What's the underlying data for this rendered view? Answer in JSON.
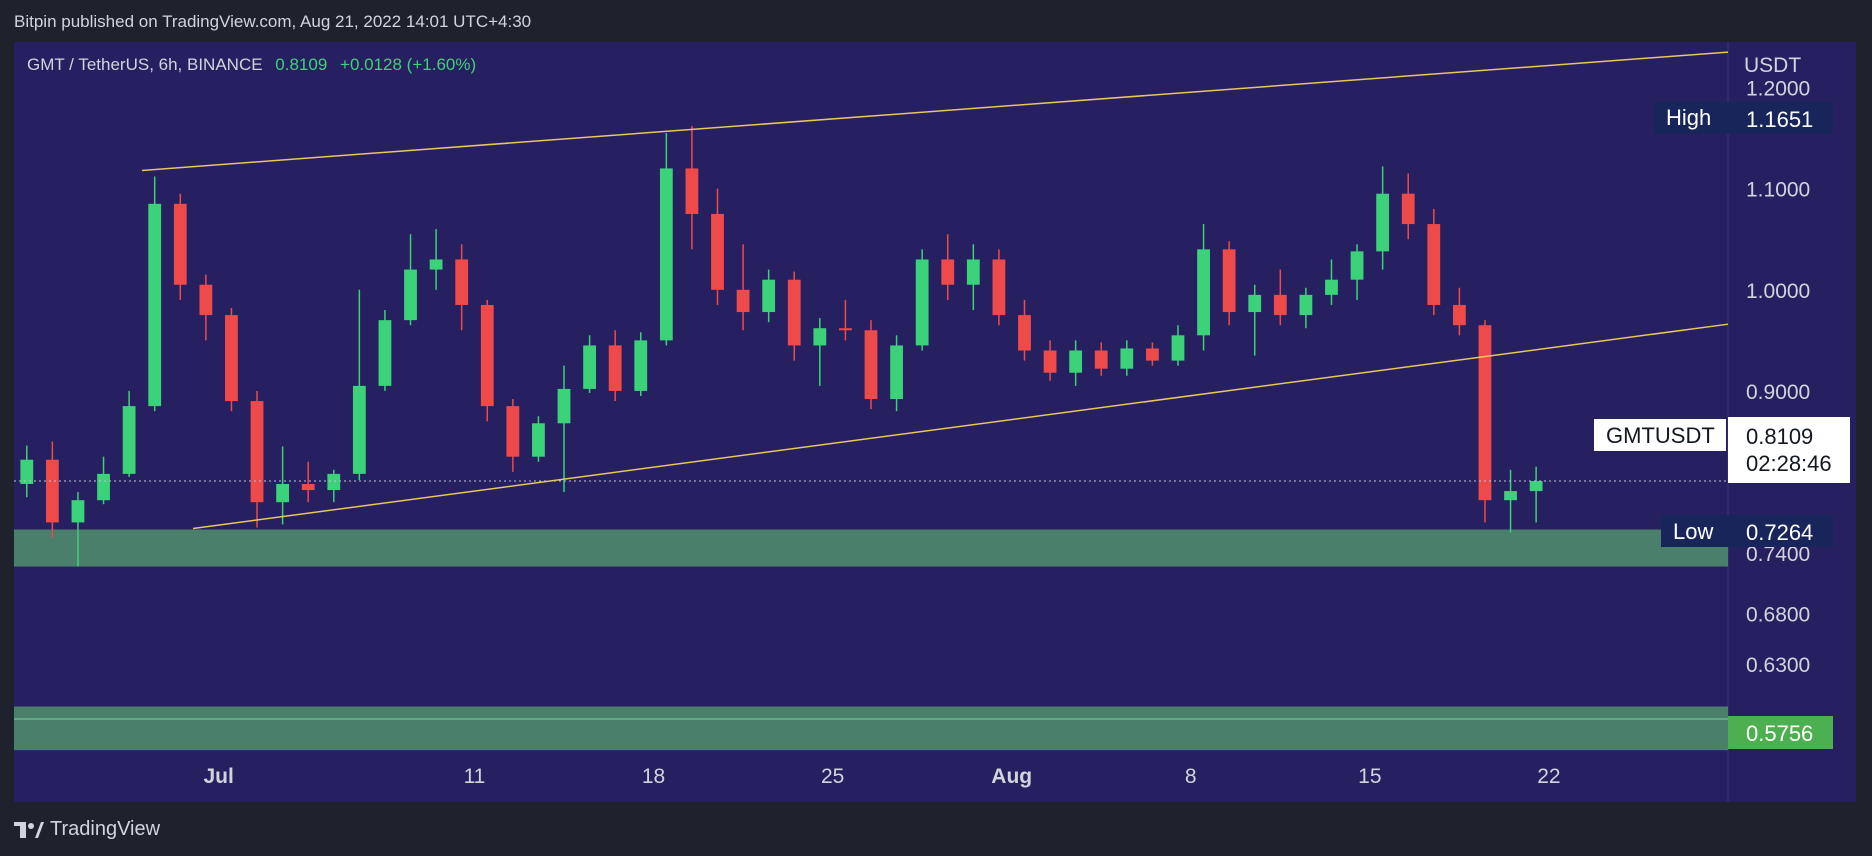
{
  "header": {
    "publisher_text": "Bitpin published on TradingView.com, Aug 21, 2022 14:01 UTC+4:30"
  },
  "footer": {
    "brand": "TradingView",
    "logo_icon": "tradingview-logo-icon"
  },
  "colors": {
    "page_bg": "#1e222d",
    "chart_bg": "#262060",
    "up": "#3cd27a",
    "down": "#ef4a4a",
    "channel": "#e8c75a",
    "zone": "#4f8a6d",
    "label_bg": "#17255a",
    "support_label": "#4caf50"
  },
  "symbol_bar": {
    "symbol": "GMT / TetherUS, 6h, BINANCE",
    "price": "0.8109",
    "change": "+0.0128 (+1.60%)"
  },
  "price_axis": {
    "unit": "USDT",
    "ticks": [
      "1.2000",
      "1.1000",
      "1.0000",
      "0.9000",
      "0.7400",
      "0.6800",
      "0.6300"
    ]
  },
  "time_axis": {
    "labels": [
      "Jul",
      "11",
      "18",
      "25",
      "Aug",
      "8",
      "15",
      "22"
    ]
  },
  "labels": {
    "high_text": "High",
    "high_value": "1.1651",
    "low_text": "Low",
    "low_value": "0.7264",
    "symbol_text": "GMTUSDT",
    "last_price": "0.8109",
    "countdown": "02:28:46",
    "support_value": "0.5756"
  },
  "chart_data": {
    "type": "candlestick",
    "symbol": "GMTUSDT",
    "interval": "6h",
    "ylim": [
      0.545,
      1.245
    ],
    "x_range": [
      "2022-06-23",
      "2022-08-29"
    ],
    "last_price": 0.8109,
    "high": 1.1651,
    "low": 0.7264,
    "support_zone_value": 0.5756,
    "zones": [
      {
        "from": "2022-06-23",
        "to": "2022-08-29",
        "low": 0.7264,
        "high": 0.763
      },
      {
        "from": "2022-06-23",
        "to": "2022-08-29",
        "low": 0.545,
        "high": 0.588
      }
    ],
    "channel": {
      "upper": [
        {
          "date": "2022-06-28",
          "price": 1.118
        },
        {
          "date": "2022-08-29",
          "price": 1.235
        }
      ],
      "lower": [
        {
          "date": "2022-06-30",
          "price": 0.764
        },
        {
          "date": "2022-08-29",
          "price": 0.966
        }
      ]
    },
    "candles": [
      [
        "2022-06-23",
        0.808,
        0.846,
        0.795,
        0.832
      ],
      [
        "2022-06-24",
        0.832,
        0.85,
        0.755,
        0.77
      ],
      [
        "2022-06-25",
        0.77,
        0.8,
        0.7264,
        0.792
      ],
      [
        "2022-06-26",
        0.792,
        0.835,
        0.788,
        0.818
      ],
      [
        "2022-06-27",
        0.818,
        0.9,
        0.815,
        0.885
      ],
      [
        "2022-06-28",
        0.885,
        1.112,
        0.88,
        1.085
      ],
      [
        "2022-06-29",
        1.085,
        1.095,
        0.99,
        1.005
      ],
      [
        "2022-06-30",
        1.005,
        1.015,
        0.95,
        0.975
      ],
      [
        "2022-07-01",
        0.975,
        0.982,
        0.88,
        0.89
      ],
      [
        "2022-07-02",
        0.89,
        0.9,
        0.765,
        0.79
      ],
      [
        "2022-07-03",
        0.79,
        0.845,
        0.768,
        0.808
      ],
      [
        "2022-07-04",
        0.808,
        0.83,
        0.79,
        0.802
      ],
      [
        "2022-07-05",
        0.802,
        0.822,
        0.79,
        0.818
      ],
      [
        "2022-07-06",
        0.818,
        1.0,
        0.812,
        0.905
      ],
      [
        "2022-07-07",
        0.905,
        0.98,
        0.9,
        0.97
      ],
      [
        "2022-07-08",
        0.97,
        1.055,
        0.965,
        1.02
      ],
      [
        "2022-07-09",
        1.02,
        1.06,
        1.0,
        1.03
      ],
      [
        "2022-07-10",
        1.03,
        1.045,
        0.96,
        0.985
      ],
      [
        "2022-07-11",
        0.985,
        0.99,
        0.87,
        0.885
      ],
      [
        "2022-07-12",
        0.885,
        0.892,
        0.82,
        0.835
      ],
      [
        "2022-07-13",
        0.835,
        0.875,
        0.83,
        0.868
      ],
      [
        "2022-07-14",
        0.868,
        0.925,
        0.8,
        0.902
      ],
      [
        "2022-07-15",
        0.902,
        0.955,
        0.898,
        0.945
      ],
      [
        "2022-07-16",
        0.945,
        0.96,
        0.89,
        0.9
      ],
      [
        "2022-07-17",
        0.9,
        0.958,
        0.895,
        0.95
      ],
      [
        "2022-07-18",
        0.95,
        1.155,
        0.945,
        1.12
      ],
      [
        "2022-07-19",
        1.12,
        1.162,
        1.04,
        1.075
      ],
      [
        "2022-07-20",
        1.075,
        1.1,
        0.985,
        1.0
      ],
      [
        "2022-07-21",
        1.0,
        1.045,
        0.96,
        0.978
      ],
      [
        "2022-07-22",
        0.978,
        1.02,
        0.968,
        1.01
      ],
      [
        "2022-07-23",
        1.01,
        1.018,
        0.93,
        0.945
      ],
      [
        "2022-07-24",
        0.945,
        0.972,
        0.905,
        0.962
      ],
      [
        "2022-07-25",
        0.962,
        0.99,
        0.95,
        0.96
      ],
      [
        "2022-07-26",
        0.96,
        0.97,
        0.882,
        0.892
      ],
      [
        "2022-07-27",
        0.892,
        0.955,
        0.88,
        0.945
      ],
      [
        "2022-07-28",
        0.945,
        1.04,
        0.94,
        1.03
      ],
      [
        "2022-07-29",
        1.03,
        1.055,
        0.99,
        1.005
      ],
      [
        "2022-07-30",
        1.005,
        1.045,
        0.98,
        1.03
      ],
      [
        "2022-07-31",
        1.03,
        1.04,
        0.965,
        0.975
      ],
      [
        "2022-08-01",
        0.975,
        0.99,
        0.93,
        0.94
      ],
      [
        "2022-08-02",
        0.94,
        0.95,
        0.91,
        0.918
      ],
      [
        "2022-08-03",
        0.918,
        0.95,
        0.905,
        0.94
      ],
      [
        "2022-08-04",
        0.94,
        0.948,
        0.915,
        0.922
      ],
      [
        "2022-08-05",
        0.922,
        0.95,
        0.915,
        0.942
      ],
      [
        "2022-08-06",
        0.942,
        0.948,
        0.925,
        0.93
      ],
      [
        "2022-08-07",
        0.93,
        0.965,
        0.925,
        0.955
      ],
      [
        "2022-08-08",
        0.955,
        1.065,
        0.94,
        1.04
      ],
      [
        "2022-08-09",
        1.04,
        1.048,
        0.965,
        0.978
      ],
      [
        "2022-08-10",
        0.978,
        1.005,
        0.935,
        0.995
      ],
      [
        "2022-08-11",
        0.995,
        1.02,
        0.965,
        0.975
      ],
      [
        "2022-08-12",
        0.975,
        1.002,
        0.962,
        0.995
      ],
      [
        "2022-08-13",
        0.995,
        1.03,
        0.985,
        1.01
      ],
      [
        "2022-08-14",
        1.01,
        1.045,
        0.99,
        1.038
      ],
      [
        "2022-08-15",
        1.038,
        1.122,
        1.02,
        1.095
      ],
      [
        "2022-08-16",
        1.095,
        1.115,
        1.05,
        1.065
      ],
      [
        "2022-08-17",
        1.065,
        1.08,
        0.975,
        0.985
      ],
      [
        "2022-08-18",
        0.985,
        1.002,
        0.955,
        0.965
      ],
      [
        "2022-08-19",
        0.965,
        0.97,
        0.77,
        0.792
      ],
      [
        "2022-08-20",
        0.792,
        0.822,
        0.76,
        0.801
      ],
      [
        "2022-08-21",
        0.801,
        0.825,
        0.77,
        0.8109
      ]
    ]
  }
}
